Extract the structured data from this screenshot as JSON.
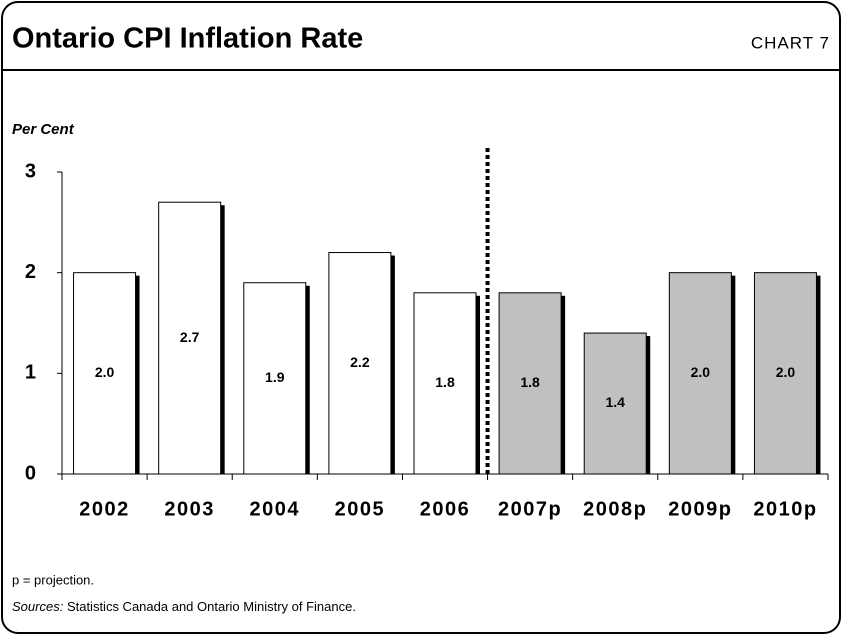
{
  "chart_data": {
    "type": "bar",
    "title": "Ontario CPI Inflation Rate",
    "chart_label": "CHART 7",
    "y_label": "Per Cent",
    "categories": [
      "2002",
      "2003",
      "2004",
      "2005",
      "2006",
      "2007p",
      "2008p",
      "2009p",
      "2010p"
    ],
    "values": [
      2.0,
      2.7,
      1.9,
      2.2,
      1.8,
      1.8,
      1.4,
      2.0,
      2.0
    ],
    "value_labels": [
      "2.0",
      "2.7",
      "1.9",
      "2.2",
      "1.8",
      "1.8",
      "1.4",
      "2.0",
      "2.0"
    ],
    "colors": [
      "#ffffff",
      "#ffffff",
      "#ffffff",
      "#ffffff",
      "#ffffff",
      "#c0c0c0",
      "#c0c0c0",
      "#c0c0c0",
      "#c0c0c0"
    ],
    "ylim": [
      0,
      3
    ],
    "yticks": [
      0,
      1,
      2,
      3
    ],
    "grid": false,
    "note": "p = projection.",
    "source_label": "Sources:",
    "source_text": "Statistics Canada and Ontario Ministry of Finance."
  }
}
